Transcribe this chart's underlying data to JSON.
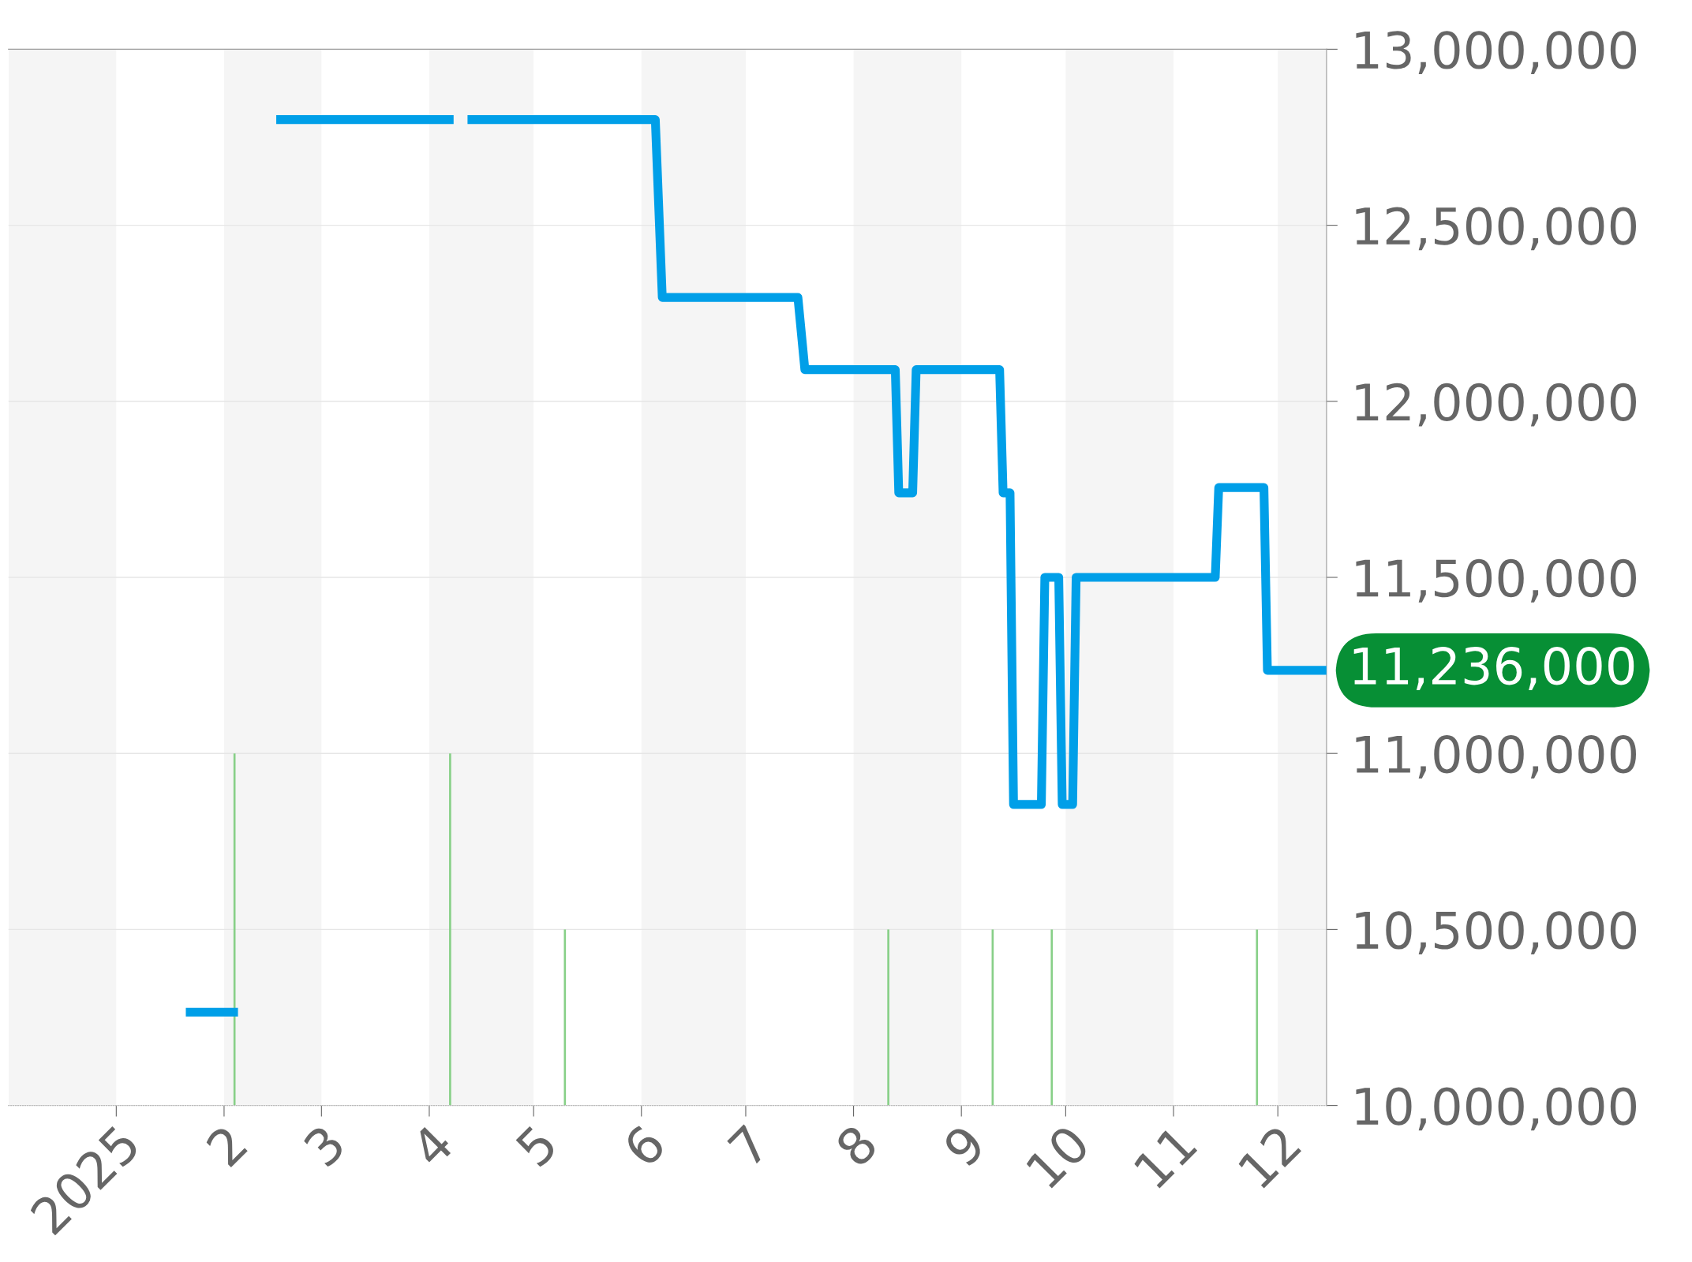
{
  "chart_data": {
    "type": "line",
    "series": [
      {
        "color": "#009fe8",
        "x": [
          "2025-01-21",
          "2025-02-05",
          "2025-02-10",
          "2025-02-16",
          "2025-04-08",
          "2025-04-10",
          "2025-04-12",
          "2025-06-05",
          "2025-06-07",
          "2025-07-16",
          "2025-07-18",
          "2025-08-13",
          "2025-08-14",
          "2025-08-18",
          "2025-08-19",
          "2025-09-12",
          "2025-09-13",
          "2025-09-15",
          "2025-09-16",
          "2025-09-24",
          "2025-09-25",
          "2025-09-29",
          "2025-09-30",
          "2025-10-03",
          "2025-10-04",
          "2025-11-13",
          "2025-11-14",
          "2025-11-27",
          "2025-11-28",
          "2025-12-15"
        ],
        "values": [
          10265000,
          10265000,
          null,
          12800000,
          12800000,
          null,
          12800000,
          12800000,
          12295000,
          12295000,
          12090000,
          12090000,
          11740000,
          11740000,
          12090000,
          12090000,
          11740000,
          11740000,
          10855000,
          10855000,
          11500000,
          11500000,
          10855000,
          10855000,
          11500000,
          11500000,
          11755000,
          11755000,
          11236000,
          11236000
        ]
      },
      {
        "type": "bar",
        "color": "#88d088",
        "x": [
          "2025-02-04",
          "2025-04-07",
          "2025-05-10",
          "2025-08-11",
          "2025-09-10",
          "2025-09-27",
          "2025-11-25"
        ],
        "values": [
          11000000,
          11000000,
          10500000,
          10500000,
          10500000,
          10500000,
          10500000
        ]
      }
    ],
    "xlim": [
      "2024-12-01",
      "2025-12-15"
    ],
    "xticks": [
      {
        "value": "2025-01-01",
        "label": "2025"
      },
      {
        "value": "2025-02-01",
        "label": "2"
      },
      {
        "value": "2025-03-01",
        "label": "3"
      },
      {
        "value": "2025-04-01",
        "label": "4"
      },
      {
        "value": "2025-05-01",
        "label": "5"
      },
      {
        "value": "2025-06-01",
        "label": "6"
      },
      {
        "value": "2025-07-01",
        "label": "7"
      },
      {
        "value": "2025-08-01",
        "label": "8"
      },
      {
        "value": "2025-09-01",
        "label": "9"
      },
      {
        "value": "2025-10-01",
        "label": "10"
      },
      {
        "value": "2025-11-01",
        "label": "11"
      },
      {
        "value": "2025-12-01",
        "label": "12"
      }
    ],
    "ylim": [
      10000000,
      13000000
    ],
    "yticks": [
      {
        "value": 10000000,
        "label": "10,000,000"
      },
      {
        "value": 10500000,
        "label": "10,500,000"
      },
      {
        "value": 11000000,
        "label": "11,000,000"
      },
      {
        "value": 11500000,
        "label": "11,500,000"
      },
      {
        "value": 12000000,
        "label": "12,000,000"
      },
      {
        "value": 12500000,
        "label": "12,500,000"
      },
      {
        "value": 13000000,
        "label": "13,000,000"
      }
    ],
    "grid": "y",
    "bands": [
      {
        "axis": "x",
        "from": "2024-12-01",
        "to": "2025-01-01",
        "color": "#f5f5f5"
      },
      {
        "axis": "x",
        "from": "2025-02-01",
        "to": "2025-03-01",
        "color": "#f5f5f5"
      },
      {
        "axis": "x",
        "from": "2025-04-01",
        "to": "2025-05-01",
        "color": "#f5f5f5"
      },
      {
        "axis": "x",
        "from": "2025-06-01",
        "to": "2025-07-01",
        "color": "#f5f5f5"
      },
      {
        "axis": "x",
        "from": "2025-08-01",
        "to": "2025-09-01",
        "color": "#f5f5f5"
      },
      {
        "axis": "x",
        "from": "2025-10-01",
        "to": "2025-11-01",
        "color": "#f5f5f5"
      },
      {
        "axis": "x",
        "from": "2025-12-01",
        "to": "2025-12-15",
        "color": "#f5f5f5"
      }
    ],
    "annotations": [
      {
        "text": "11,236,000",
        "x": "2025-12-15",
        "y": 11236000
      }
    ]
  }
}
